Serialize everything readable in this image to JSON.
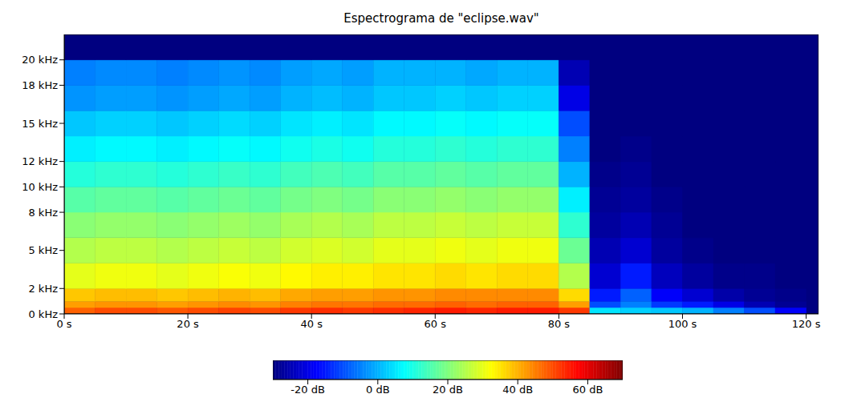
{
  "chart_data": {
    "type": "heatmap",
    "title": "Espectrograma de \"eclipse.wav\"",
    "xlim": [
      0,
      122
    ],
    "ylim": [
      0,
      22
    ],
    "xticks": [
      {
        "value": 0,
        "label": "0 s"
      },
      {
        "value": 20,
        "label": "20 s"
      },
      {
        "value": 40,
        "label": "40 s"
      },
      {
        "value": 60,
        "label": "60 s"
      },
      {
        "value": 80,
        "label": "80 s"
      },
      {
        "value": 100,
        "label": "100 s"
      },
      {
        "value": 120,
        "label": "120 s"
      }
    ],
    "yticks": [
      {
        "value": 0,
        "label": "0 kHz"
      },
      {
        "value": 2,
        "label": "2 kHz"
      },
      {
        "value": 5,
        "label": "5 kHz"
      },
      {
        "value": 8,
        "label": "8 kHz"
      },
      {
        "value": 10,
        "label": "10 kHz"
      },
      {
        "value": 12,
        "label": "12 kHz"
      },
      {
        "value": 15,
        "label": "15 kHz"
      },
      {
        "value": 18,
        "label": "18 kHz"
      },
      {
        "value": 20,
        "label": "20 kHz"
      }
    ],
    "grid": false,
    "x_edges": [
      0,
      5,
      10,
      15,
      20,
      25,
      30,
      35,
      40,
      45,
      50,
      55,
      60,
      65,
      70,
      75,
      80,
      85,
      90,
      95,
      100,
      105,
      110,
      115,
      120
    ],
    "y_edges": [
      0,
      0.5,
      1,
      2,
      4,
      6,
      8,
      10,
      12,
      14,
      16,
      18,
      20,
      22
    ],
    "cells": [
      [
        48,
        50,
        50,
        49,
        50,
        51,
        50,
        52,
        53,
        52,
        53,
        54,
        55,
        54,
        55,
        55,
        52,
        5,
        3,
        2,
        0,
        -5,
        -10,
        -18
      ],
      [
        42,
        43,
        43,
        42,
        43,
        44,
        43,
        45,
        46,
        46,
        47,
        47,
        48,
        47,
        48,
        48,
        42,
        -10,
        -5,
        -12,
        -15,
        -20,
        -25,
        -28
      ],
      [
        38,
        39,
        39,
        38,
        39,
        40,
        39,
        41,
        42,
        42,
        43,
        43,
        44,
        44,
        44,
        44,
        36,
        -15,
        -8,
        -18,
        -22,
        -26,
        -28,
        -29
      ],
      [
        30,
        31,
        31,
        30,
        31,
        32,
        31,
        33,
        34,
        34,
        35,
        35,
        36,
        35,
        36,
        36,
        25,
        -22,
        -15,
        -24,
        -27,
        -29,
        -29,
        -30
      ],
      [
        25,
        26,
        26,
        25,
        26,
        27,
        26,
        28,
        29,
        28,
        30,
        30,
        31,
        30,
        31,
        31,
        18,
        -25,
        -22,
        -27,
        -29,
        -30,
        -30,
        -30
      ],
      [
        21,
        22,
        22,
        21,
        22,
        23,
        22,
        24,
        25,
        24,
        26,
        26,
        27,
        26,
        27,
        27,
        12,
        -27,
        -25,
        -28,
        -30,
        -30,
        -30,
        -30
      ],
      [
        16,
        17,
        17,
        16,
        17,
        18,
        17,
        19,
        20,
        19,
        21,
        21,
        22,
        21,
        22,
        22,
        6,
        -28,
        -27,
        -29,
        -30,
        -30,
        -30,
        -30
      ],
      [
        11,
        12,
        12,
        11,
        12,
        13,
        12,
        14,
        15,
        14,
        16,
        16,
        17,
        16,
        17,
        17,
        0,
        -29,
        -28,
        -30,
        -30,
        -30,
        -30,
        -30
      ],
      [
        6,
        7,
        7,
        6,
        7,
        8,
        7,
        9,
        10,
        9,
        11,
        11,
        12,
        11,
        12,
        12,
        -5,
        -30,
        -29,
        -30,
        -30,
        -30,
        -30,
        -30
      ],
      [
        2,
        3,
        3,
        2,
        3,
        4,
        3,
        5,
        6,
        5,
        7,
        7,
        8,
        7,
        8,
        8,
        -10,
        -30,
        -30,
        -30,
        -30,
        -30,
        -30,
        -30
      ],
      [
        -3,
        -2,
        -2,
        -3,
        -2,
        -1,
        -2,
        0,
        1,
        0,
        2,
        2,
        3,
        2,
        3,
        3,
        -20,
        -30,
        -30,
        -30,
        -30,
        -30,
        -30,
        -30
      ],
      [
        -5,
        -4,
        -4,
        -5,
        -4,
        -3,
        -4,
        -2,
        -1,
        -2,
        0,
        0,
        0,
        -1,
        0,
        0,
        -25,
        -30,
        -30,
        -30,
        -30,
        -30,
        -30,
        -30
      ],
      [
        -30,
        -30,
        -30,
        -30,
        -30,
        -30,
        -30,
        -30,
        -30,
        -30,
        -30,
        -30,
        -30,
        -30,
        -30,
        -30,
        -30,
        -30,
        -30,
        -30,
        -30,
        -30,
        -30,
        -30
      ]
    ],
    "colorbar_range": [
      -30,
      70
    ],
    "colorbar_ticks": [
      {
        "value": -20,
        "label": "-20 dB"
      },
      {
        "value": 0,
        "label": "0 dB"
      },
      {
        "value": 20,
        "label": "20 dB"
      },
      {
        "value": 40,
        "label": "40 dB"
      },
      {
        "value": 60,
        "label": "60 dB"
      }
    ]
  }
}
